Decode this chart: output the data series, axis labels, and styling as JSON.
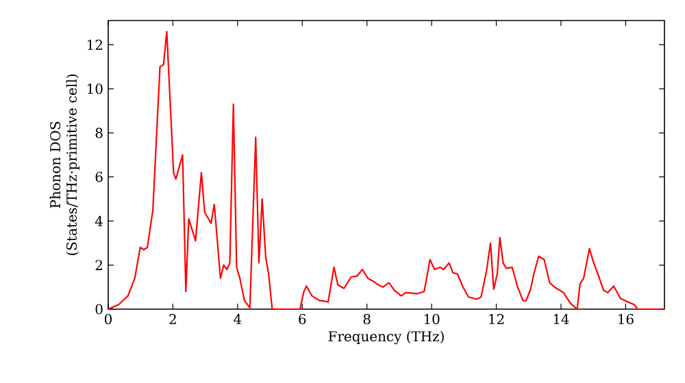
{
  "chart_data": {
    "type": "line",
    "xlabel": "Frequency (THz)",
    "ylabel": "Phonon DOS (States/THz·primitive cell)",
    "xlim": [
      0,
      17.2
    ],
    "ylim": [
      0,
      13.1
    ],
    "xticks": [
      0,
      2,
      4,
      6,
      8,
      10,
      12,
      14,
      16
    ],
    "yticks": [
      0,
      2,
      4,
      6,
      8,
      10,
      12
    ],
    "series": [
      {
        "color": "#ff0000",
        "x": [
          0,
          0.32,
          0.61,
          0.82,
          0.99,
          1.1,
          1.21,
          1.38,
          1.6,
          1.71,
          1.81,
          2.02,
          2.09,
          2.3,
          2.4,
          2.49,
          2.7,
          2.88,
          2.98,
          3.18,
          3.28,
          3.47,
          3.57,
          3.67,
          3.76,
          3.87,
          3.97,
          4.07,
          4.21,
          4.38,
          4.56,
          4.66,
          4.76,
          4.87,
          4.96,
          5.07,
          5.93,
          6.05,
          6.13,
          6.3,
          6.52,
          6.8,
          6.98,
          7.1,
          7.29,
          7.51,
          7.69,
          7.86,
          8.03,
          8.21,
          8.35,
          8.49,
          8.68,
          8.85,
          9.06,
          9.2,
          9.55,
          9.77,
          9.95,
          10.09,
          10.26,
          10.37,
          10.54,
          10.66,
          10.8,
          10.97,
          11.14,
          11.39,
          11.53,
          11.7,
          11.82,
          11.92,
          12.03,
          12.11,
          12.21,
          12.31,
          12.49,
          12.66,
          12.83,
          12.92,
          13.06,
          13.16,
          13.31,
          13.48,
          13.65,
          13.8,
          14.08,
          14.29,
          14.5,
          14.59,
          14.7,
          14.88,
          15.0,
          15.14,
          15.32,
          15.45,
          15.63,
          15.84,
          16.06,
          16.27,
          16.37,
          17.19
        ],
        "values": [
          0,
          0.2,
          0.6,
          1.4,
          2.8,
          2.7,
          2.8,
          4.5,
          11.0,
          11.1,
          12.6,
          6.2,
          5.9,
          7.0,
          0.8,
          4.1,
          3.1,
          6.2,
          4.4,
          3.9,
          4.75,
          1.4,
          2.0,
          1.8,
          2.1,
          9.3,
          1.9,
          1.4,
          0.4,
          0.06,
          7.8,
          2.1,
          5.0,
          2.35,
          1.6,
          0,
          0,
          0.8,
          1.05,
          0.6,
          0.4,
          0.33,
          1.9,
          1.1,
          0.94,
          1.46,
          1.5,
          1.8,
          1.4,
          1.25,
          1.1,
          1.0,
          1.2,
          0.85,
          0.6,
          0.75,
          0.7,
          0.8,
          2.25,
          1.8,
          1.9,
          1.8,
          2.1,
          1.65,
          1.6,
          1.0,
          0.55,
          0.45,
          0.55,
          1.75,
          3.0,
          0.9,
          1.6,
          3.25,
          2.1,
          1.85,
          1.9,
          1.0,
          0.38,
          0.38,
          0.9,
          1.6,
          2.4,
          2.25,
          1.2,
          1.0,
          0.75,
          0.27,
          0,
          1.15,
          1.4,
          2.75,
          2.15,
          1.6,
          0.85,
          0.75,
          1.05,
          0.48,
          0.33,
          0.2,
          0,
          0
        ]
      }
    ]
  }
}
